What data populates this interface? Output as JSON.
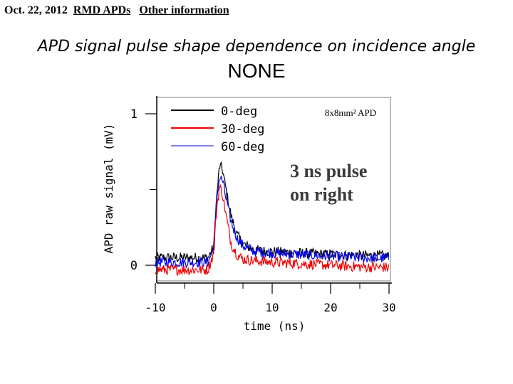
{
  "header": {
    "date": "Oct. 22, 2012",
    "section": "RMD APDs",
    "subsection": "Other information"
  },
  "title": "APD signal pulse shape dependence on incidence angle",
  "subtitle": "NONE",
  "chart_data": {
    "type": "line",
    "xlabel": "time (ns)",
    "ylabel": "APD raw signal (mV)",
    "xlim": [
      -10,
      30
    ],
    "ylim": [
      -0.1,
      1.08
    ],
    "x_ticks": [
      "-10",
      "0",
      "10",
      "20",
      "30"
    ],
    "y_ticks": [
      "0",
      "1"
    ],
    "legend_position": "top-left",
    "grid": false,
    "annotations": {
      "device": "8x8mm² APD",
      "pulse_note_line1": "3 ns pulse",
      "pulse_note_line2": "on right"
    },
    "series": [
      {
        "name": "0-deg",
        "color": "#000000",
        "points": [
          [
            -10,
            0.05
          ],
          [
            -1,
            0.05
          ],
          [
            0,
            0.12
          ],
          [
            0.5,
            0.45
          ],
          [
            1,
            0.66
          ],
          [
            1.5,
            0.63
          ],
          [
            2,
            0.52
          ],
          [
            3,
            0.32
          ],
          [
            4,
            0.2
          ],
          [
            5,
            0.14
          ],
          [
            7,
            0.1
          ],
          [
            10,
            0.09
          ],
          [
            15,
            0.08
          ],
          [
            20,
            0.07
          ],
          [
            25,
            0.065
          ],
          [
            30,
            0.06
          ]
        ]
      },
      {
        "name": "30-deg",
        "color": "#ee0000",
        "points": [
          [
            -10,
            -0.03
          ],
          [
            -1,
            -0.03
          ],
          [
            0,
            0.08
          ],
          [
            0.5,
            0.38
          ],
          [
            1,
            0.52
          ],
          [
            1.5,
            0.47
          ],
          [
            2,
            0.35
          ],
          [
            3,
            0.14
          ],
          [
            4,
            0.07
          ],
          [
            5,
            0.04
          ],
          [
            7,
            0.03
          ],
          [
            10,
            0.02
          ],
          [
            15,
            0.01
          ],
          [
            20,
            0.0
          ],
          [
            25,
            -0.01
          ],
          [
            30,
            -0.015
          ]
        ]
      },
      {
        "name": "60-deg",
        "color": "#0000ee",
        "points": [
          [
            -10,
            0.02
          ],
          [
            -1,
            0.02
          ],
          [
            0,
            0.11
          ],
          [
            0.5,
            0.44
          ],
          [
            1,
            0.58
          ],
          [
            1.5,
            0.56
          ],
          [
            2,
            0.46
          ],
          [
            3,
            0.28
          ],
          [
            4,
            0.18
          ],
          [
            5,
            0.13
          ],
          [
            7,
            0.09
          ],
          [
            10,
            0.08
          ],
          [
            15,
            0.07
          ],
          [
            20,
            0.06
          ],
          [
            25,
            0.05
          ],
          [
            30,
            0.045
          ]
        ]
      }
    ]
  }
}
